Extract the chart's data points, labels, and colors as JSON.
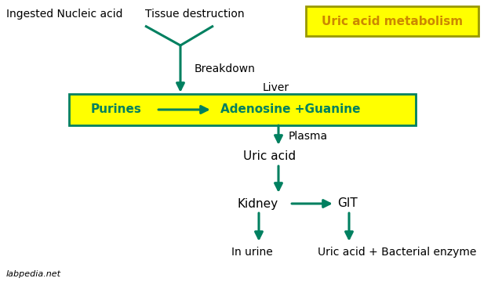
{
  "bg_color": "#ffffff",
  "arrow_color": "#008060",
  "text_color": "#000000",
  "box_fill": "#ffff00",
  "box_edge": "#008060",
  "title_fill": "#ffff00",
  "title_edge": "#999900",
  "title_text": "Uric acid metabolism",
  "title_text_color": "#cc8800",
  "label_ingested": "Ingested Nucleic acid",
  "label_tissue": "Tissue destruction",
  "label_breakdown": "Breakdown",
  "label_liver": "Liver",
  "label_purines": "Purines",
  "label_adenosine": "Adenosine +Guanine",
  "label_plasma": "Plasma",
  "label_uric_acid": "Uric acid",
  "label_kidney": "Kidney",
  "label_git": "GIT",
  "label_in_urine": "In urine",
  "label_ua_bacterial": "Uric acid + Bacterial enzyme",
  "label_watermark": "labpedia.net",
  "figsize": [
    6.4,
    3.69
  ],
  "dpi": 100
}
